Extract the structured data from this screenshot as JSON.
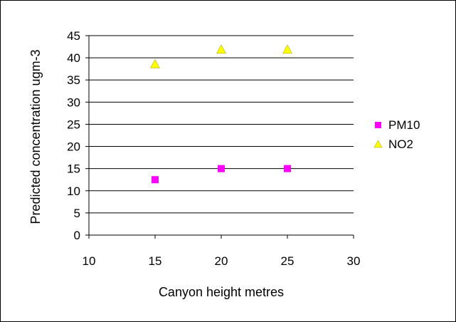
{
  "chart_data": {
    "type": "scatter",
    "xlabel": "Canyon height metres",
    "ylabel": "Predicted concentration ugm-3",
    "xlim": [
      10,
      30
    ],
    "ylim": [
      0,
      45
    ],
    "xticks": [
      "10",
      "15",
      "20",
      "25",
      "30"
    ],
    "yticks": [
      "0",
      "5",
      "10",
      "15",
      "20",
      "25",
      "30",
      "35",
      "40",
      "45"
    ],
    "grid": "horizontal",
    "legend_position": "right",
    "series": [
      {
        "name": "PM10",
        "marker": "square",
        "color": "#FF00FF",
        "points": [
          {
            "x": 15,
            "y": 12.5
          },
          {
            "x": 20,
            "y": 15
          },
          {
            "x": 25,
            "y": 15
          }
        ]
      },
      {
        "name": "NO2",
        "marker": "triangle",
        "color": "#FFFF00",
        "points": [
          {
            "x": 15,
            "y": 38.5
          },
          {
            "x": 20,
            "y": 41.8
          },
          {
            "x": 25,
            "y": 41.8
          }
        ]
      }
    ]
  }
}
